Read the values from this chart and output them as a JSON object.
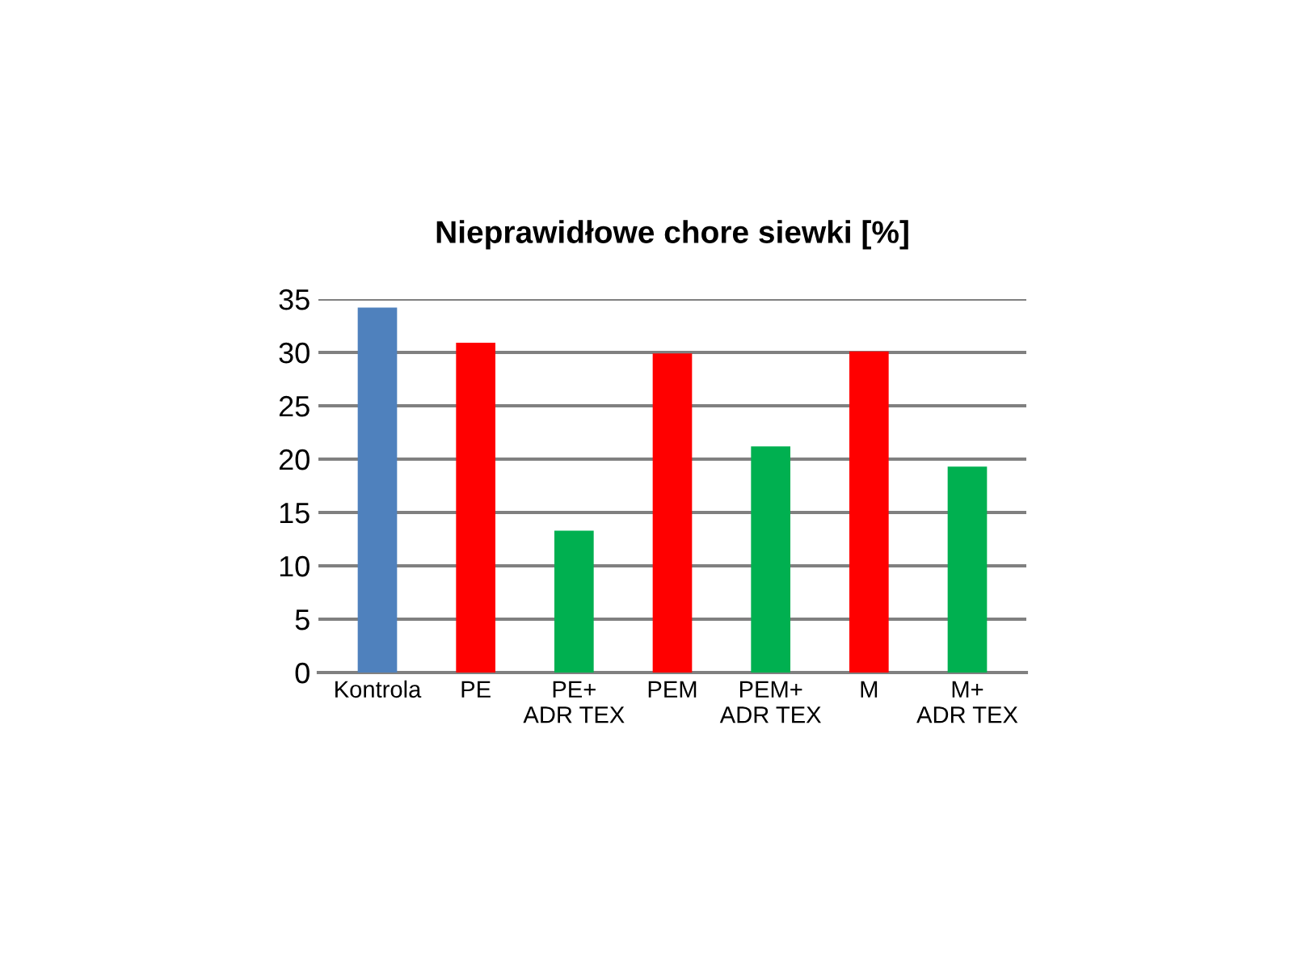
{
  "chart_data": {
    "type": "bar",
    "title": "Nieprawidłowe chore siewki [%]",
    "categories": [
      "Kontrola",
      "PE",
      "PE+\nADR TEX",
      "PEM",
      "PEM+\nADR TEX",
      "M",
      "M+\nADR TEX"
    ],
    "values": [
      34.2,
      30.9,
      13.3,
      29.9,
      21.2,
      30.1,
      19.3
    ],
    "colors": [
      "#4f81bd",
      "#ff0000",
      "#00b050",
      "#ff0000",
      "#00b050",
      "#ff0000",
      "#00b050"
    ],
    "ylim": [
      0,
      35
    ],
    "yticks": [
      0,
      5,
      10,
      15,
      20,
      25,
      30,
      35
    ],
    "grid": "y"
  }
}
